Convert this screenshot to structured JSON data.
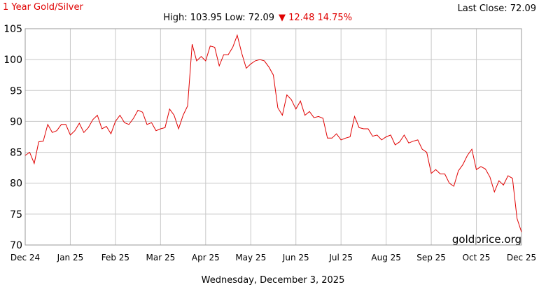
{
  "chart_data": {
    "type": "line",
    "title": "1 Year Gold/Silver",
    "last_close": "Last Close: 72.09",
    "subtitle": "High: 103.95 Low: 72.09",
    "change": "▼ 12.48 14.75%",
    "watermark": "goldprice.org",
    "date": "Wednesday, December 3, 2025",
    "x": [
      0,
      1,
      2,
      3,
      4,
      5,
      6,
      7,
      8,
      9,
      10,
      11,
      12,
      13,
      14,
      15,
      16,
      17,
      18,
      19,
      20,
      21,
      22,
      23,
      24,
      25,
      26,
      27,
      28,
      29,
      30,
      31,
      32,
      33,
      34,
      35,
      36,
      37,
      38,
      39,
      40,
      41,
      42,
      43,
      44,
      45,
      46,
      47,
      48,
      49,
      50,
      51,
      52,
      53,
      54,
      55,
      56,
      57,
      58,
      59,
      60,
      61,
      62,
      63,
      64,
      65,
      66,
      67,
      68,
      69,
      70,
      71,
      72,
      73,
      74,
      75,
      76,
      77,
      78,
      79,
      80,
      81,
      82,
      83,
      84,
      85,
      86,
      87,
      88,
      89,
      90,
      91,
      92,
      93,
      94,
      95,
      96,
      97,
      98,
      99,
      100,
      101,
      102,
      103,
      104,
      105,
      106,
      107,
      108,
      109,
      110
    ],
    "series": [
      {
        "name": "Gold/Silver",
        "color": "#e00000",
        "values": [
          84.5,
          85,
          83.2,
          86.7,
          86.8,
          89.5,
          88.2,
          88.5,
          89.5,
          89.5,
          87.8,
          88.5,
          89.7,
          88.2,
          89,
          90.3,
          91,
          88.8,
          89.2,
          88,
          90,
          91,
          89.8,
          89.5,
          90.5,
          91.8,
          91.5,
          89.5,
          89.8,
          88.5,
          88.8,
          89,
          92,
          91,
          88.8,
          91,
          92.5,
          102.5,
          99.8,
          100.5,
          99.8,
          102.2,
          102,
          99,
          100.8,
          100.8,
          102,
          103.95,
          101,
          98.6,
          99.3,
          99.8,
          100,
          99.8,
          98.8,
          97.5,
          92.2,
          91,
          94.3,
          93.5,
          92,
          93.3,
          91,
          91.6,
          90.6,
          90.8,
          90.5,
          87.3,
          87.3,
          88,
          87,
          87.3,
          87.5,
          90.8,
          89,
          88.8,
          88.8,
          87.6,
          87.8,
          87,
          87.5,
          87.8,
          86.2,
          86.7,
          87.8,
          86.5,
          86.8,
          87,
          85.5,
          85,
          81.6,
          82.2,
          81.5,
          81.5,
          80,
          79.5,
          82,
          83,
          84.5,
          85.5,
          82.2,
          82.7,
          82.3,
          81,
          78.6,
          80.4,
          79.7,
          81.2,
          80.8,
          74.3,
          72.09
        ]
      }
    ],
    "xlim": [
      0,
      110
    ],
    "xticks": [
      {
        "value": 0,
        "label": "Dec 24"
      },
      {
        "value": 10,
        "label": "Jan 25"
      },
      {
        "value": 20,
        "label": "Feb 25"
      },
      {
        "value": 30,
        "label": "Mar 25"
      },
      {
        "value": 40,
        "label": "Apr 25"
      },
      {
        "value": 50,
        "label": "May 25"
      },
      {
        "value": 60,
        "label": "Jun 25"
      },
      {
        "value": 70,
        "label": "Jul 25"
      },
      {
        "value": 80,
        "label": "Aug 25"
      },
      {
        "value": 90,
        "label": "Sep 25"
      },
      {
        "value": 100,
        "label": "Oct 25"
      },
      {
        "value": 110,
        "label": "Dec 25"
      }
    ],
    "ylim": [
      70,
      105
    ],
    "yticks": [
      70,
      75,
      80,
      85,
      90,
      95,
      100,
      105
    ],
    "grid": true
  }
}
